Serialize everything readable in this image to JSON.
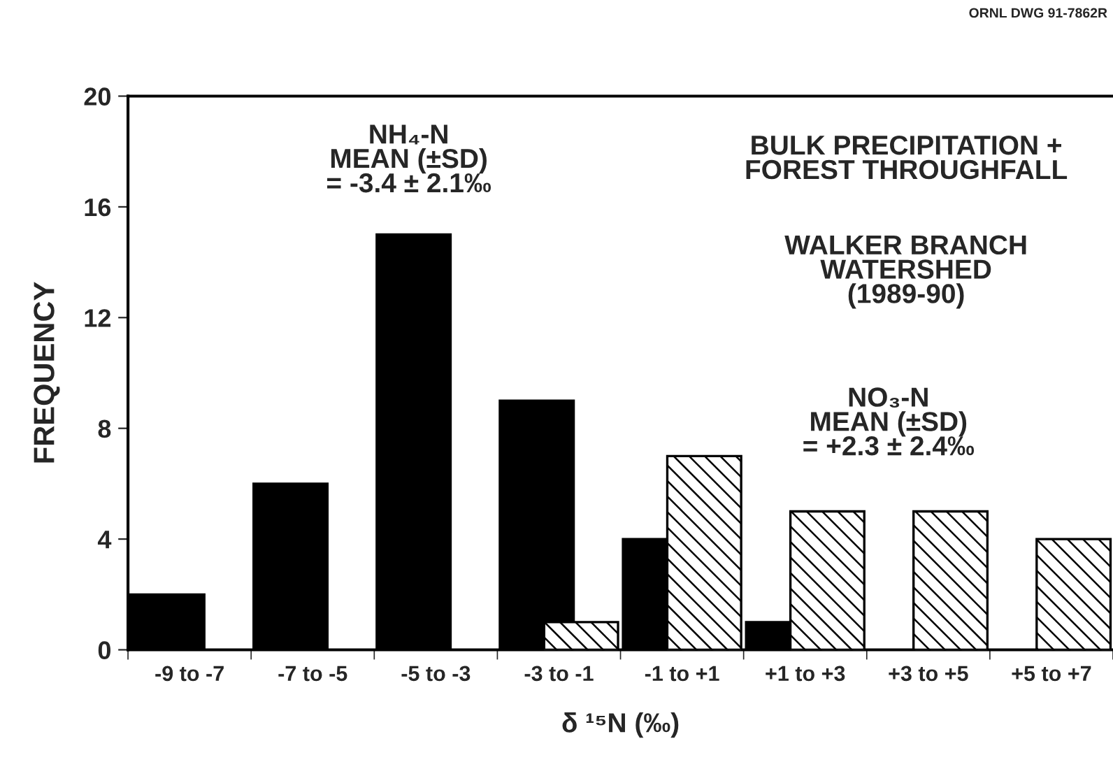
{
  "chart_data": {
    "type": "bar",
    "subtitle": "WALKER BRANCH\nWATERSHED\n(1989-90)",
    "title": "BULK PRECIPITATION +\nFOREST THROUGHFALL",
    "xlabel": "δ ¹⁵N (‰)",
    "ylabel": "FREQUENCY",
    "categories": [
      "-9 to -7",
      "-7 to -5",
      "-5 to -3",
      "-3 to -1",
      "-1 to +1",
      "+1 to +3",
      "+3 to +5",
      "+5 to +7"
    ],
    "series": [
      {
        "color": "#000000",
        "values": [
          2,
          6,
          15,
          9,
          4,
          1,
          0,
          0
        ]
      },
      {
        "color": "#000000",
        "values": [
          0,
          0,
          0,
          1,
          7,
          5,
          5,
          4
        ]
      }
    ],
    "ylim": [
      0,
      20
    ],
    "yticks": [
      0,
      4,
      8,
      12,
      16,
      20
    ],
    "annotations": [
      "NH₄-N\nMEAN (±SD)\n= -3.4 ± 2.1‰",
      "NO₃-N\nMEAN (±SD)\n= +2.3 ± 2.4‰",
      "ORNL DWG 91-7862R"
    ],
    "grid": false,
    "legend": false
  }
}
